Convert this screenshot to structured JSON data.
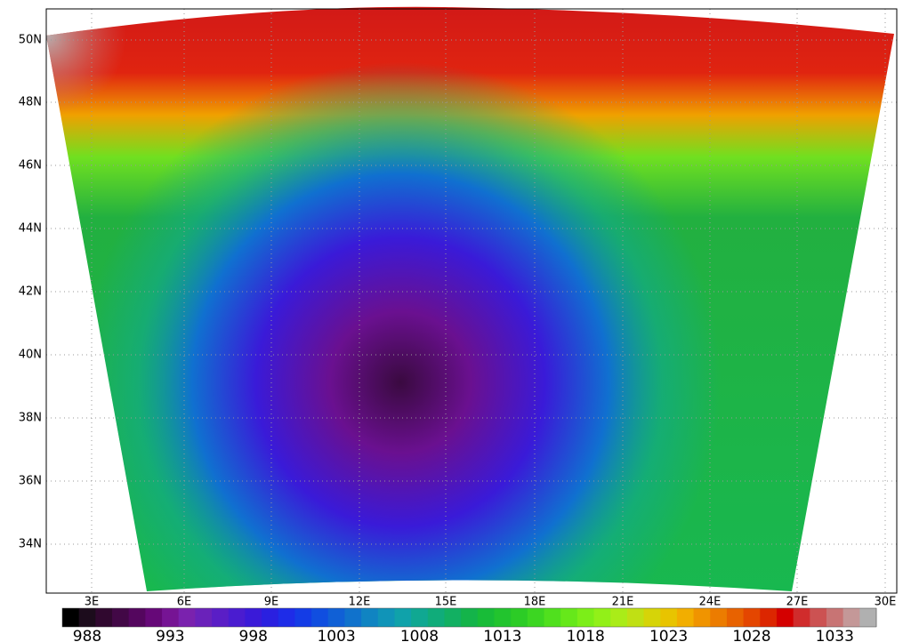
{
  "map": {
    "lat_labels": [
      "50N",
      "48N",
      "46N",
      "44N",
      "42N",
      "40N",
      "38N",
      "36N",
      "34N"
    ],
    "lon_labels": [
      "3E",
      "6E",
      "9E",
      "12E",
      "15E",
      "18E",
      "21E",
      "24E",
      "27E",
      "30E"
    ]
  },
  "colorbar": {
    "lim": [
      987,
      1036
    ],
    "ticks": [
      988,
      993,
      998,
      1003,
      1008,
      1013,
      1018,
      1023,
      1028,
      1033
    ],
    "colors": [
      "#000000",
      "#1c0c1c",
      "#30082f",
      "#420846",
      "#54065e",
      "#660878",
      "#761494",
      "#7a22ae",
      "#6a22ba",
      "#5a1ec6",
      "#4a1cd0",
      "#3a1ad8",
      "#2a20e0",
      "#1e2ce8",
      "#143ce6",
      "#104ee0",
      "#1060d6",
      "#1072cc",
      "#1084c2",
      "#1094b8",
      "#10a2aa",
      "#10a892",
      "#10ac7a",
      "#12b062",
      "#14b44a",
      "#18bc38",
      "#22c42e",
      "#2ccc26",
      "#3cd622",
      "#50e01e",
      "#66e81a",
      "#7cee18",
      "#92f018",
      "#aaec18",
      "#c0e014",
      "#d6d408",
      "#e8c400",
      "#f2ae00",
      "#f09400",
      "#ec7c00",
      "#e86200",
      "#e44600",
      "#dc2600",
      "#d40000",
      "#d02c2c",
      "#cc5252",
      "#c87474",
      "#c49898",
      "#b0b0b0"
    ]
  }
}
